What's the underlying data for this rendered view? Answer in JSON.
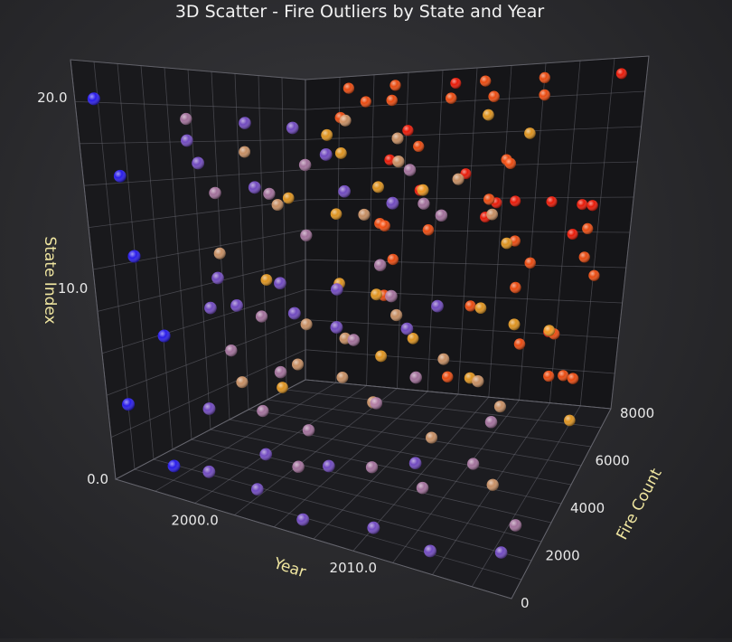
{
  "chart_data": {
    "type": "scatter",
    "title": "3D Scatter - Fire Outliers by State and Year",
    "xlabel": "Year",
    "ylabel": "State Index",
    "zlabel": "Fire Count",
    "xlim": [
      1995,
      2020
    ],
    "ylim": [
      0,
      22
    ],
    "zlim": [
      0,
      8000
    ],
    "x_ticks": [
      2000,
      2010
    ],
    "x_tick_labels": [
      "2000.0",
      "2010.0"
    ],
    "y_ticks": [
      0,
      10,
      20
    ],
    "y_tick_labels": [
      "0.0",
      "10.0",
      "20.0"
    ],
    "z_ticks": [
      0,
      2000,
      4000,
      6000,
      8000
    ],
    "z_tick_labels": [
      "0",
      "2000",
      "4000",
      "6000",
      "8000"
    ],
    "grid": true,
    "projection": "3d-perspective",
    "color_scale": [
      "#2a1cff",
      "#7a4fd0",
      "#b07aa8",
      "#d89a6a",
      "#f2a020",
      "#ff5010",
      "#ff1a05"
    ],
    "points": [
      [
        1996,
        20,
        300
      ],
      [
        1997,
        16,
        500
      ],
      [
        1998,
        12,
        200
      ],
      [
        1999,
        8,
        400
      ],
      [
        1996,
        4,
        250
      ],
      [
        1998,
        1,
        600
      ],
      [
        2000,
        21,
        7200
      ],
      [
        2001,
        19,
        6500
      ],
      [
        2002,
        20,
        6900
      ],
      [
        2003,
        18,
        5200
      ],
      [
        2004,
        21,
        7000
      ],
      [
        2005,
        17,
        4800
      ],
      [
        2006,
        20,
        6100
      ],
      [
        2007,
        21,
        7600
      ],
      [
        2008,
        19,
        3900
      ],
      [
        2009,
        20,
        6700
      ],
      [
        2010,
        21,
        7300
      ],
      [
        2011,
        18,
        4300
      ],
      [
        2012,
        20,
        6800
      ],
      [
        2013,
        17,
        3500
      ],
      [
        2014,
        19,
        5900
      ],
      [
        2015,
        21,
        7100
      ],
      [
        2016,
        16,
        4100
      ],
      [
        2017,
        20,
        6400
      ],
      [
        2018,
        18,
        5600
      ],
      [
        2019,
        21,
        7700
      ],
      [
        2000,
        15,
        2500
      ],
      [
        2001,
        14,
        4200
      ],
      [
        2002,
        13,
        5800
      ],
      [
        2003,
        15,
        3100
      ],
      [
        2004,
        12,
        6600
      ],
      [
        2005,
        14,
        7400
      ],
      [
        2006,
        13,
        2900
      ],
      [
        2007,
        15,
        5100
      ],
      [
        2008,
        12,
        6300
      ],
      [
        2009,
        14,
        3700
      ],
      [
        2010,
        13,
        7800
      ],
      [
        2011,
        15,
        4900
      ],
      [
        2012,
        12,
        2700
      ],
      [
        2013,
        14,
        6200
      ],
      [
        2014,
        13,
        7900
      ],
      [
        2015,
        15,
        3300
      ],
      [
        2016,
        12,
        5400
      ],
      [
        2017,
        14,
        4600
      ],
      [
        2018,
        13,
        7500
      ],
      [
        2019,
        15,
        2300
      ],
      [
        2011,
        13,
        8000
      ],
      [
        2009,
        12,
        7900
      ],
      [
        2016,
        11,
        7800
      ],
      [
        2017,
        13,
        7600
      ],
      [
        2003,
        12,
        6900
      ],
      [
        2005,
        10,
        6400
      ],
      [
        2013,
        11,
        7100
      ],
      [
        2015,
        10,
        6700
      ],
      [
        2000,
        9,
        1800
      ],
      [
        2001,
        8,
        3200
      ],
      [
        2002,
        7,
        4400
      ],
      [
        2003,
        9,
        5300
      ],
      [
        2004,
        6,
        2100
      ],
      [
        2005,
        8,
        6000
      ],
      [
        2006,
        7,
        3800
      ],
      [
        2007,
        9,
        4700
      ],
      [
        2008,
        6,
        5500
      ],
      [
        2009,
        8,
        2600
      ],
      [
        2010,
        7,
        6900
      ],
      [
        2011,
        9,
        3400
      ],
      [
        2012,
        6,
        4500
      ],
      [
        2013,
        8,
        5700
      ],
      [
        2014,
        7,
        2200
      ],
      [
        2015,
        9,
        6100
      ],
      [
        2016,
        6,
        3600
      ],
      [
        2017,
        8,
        4900
      ],
      [
        2018,
        7,
        5800
      ],
      [
        2019,
        9,
        7200
      ],
      [
        2000,
        4,
        1200
      ],
      [
        2001,
        3,
        2800
      ],
      [
        2002,
        5,
        3900
      ],
      [
        2003,
        2,
        1500
      ],
      [
        2004,
        4,
        4600
      ],
      [
        2005,
        3,
        2300
      ],
      [
        2006,
        5,
        5200
      ],
      [
        2007,
        2,
        1700
      ],
      [
        2008,
        4,
        3500
      ],
      [
        2009,
        3,
        6400
      ],
      [
        2010,
        5,
        2500
      ],
      [
        2011,
        2,
        4100
      ],
      [
        2012,
        4,
        5600
      ],
      [
        2013,
        3,
        1900
      ],
      [
        2014,
        5,
        6800
      ],
      [
        2015,
        2,
        3300
      ],
      [
        2016,
        4,
        4400
      ],
      [
        2017,
        3,
        7100
      ],
      [
        2018,
        5,
        2700
      ],
      [
        2019,
        2,
        5900
      ],
      [
        2000,
        1,
        800
      ],
      [
        2002,
        0,
        1500
      ],
      [
        2004,
        1,
        2200
      ],
      [
        2006,
        0,
        700
      ],
      [
        2008,
        1,
        3000
      ],
      [
        2010,
        0,
        1200
      ],
      [
        2012,
        1,
        2600
      ],
      [
        2014,
        0,
        900
      ],
      [
        2016,
        1,
        3400
      ],
      [
        2018,
        0,
        1600
      ],
      [
        2019,
        1,
        2000
      ],
      [
        2001,
        18,
        1400
      ],
      [
        2003,
        17,
        900
      ],
      [
        2005,
        19,
        1900
      ],
      [
        2007,
        16,
        1100
      ],
      [
        2009,
        17,
        2100
      ],
      [
        2011,
        19,
        1300
      ],
      [
        2013,
        16,
        1700
      ],
      [
        2015,
        18,
        800
      ],
      [
        2017,
        17,
        2400
      ],
      [
        2019,
        16,
        1000
      ],
      [
        2002,
        11,
        1300
      ],
      [
        2004,
        10,
        900
      ],
      [
        2006,
        11,
        1700
      ],
      [
        2008,
        10,
        1100
      ],
      [
        2010,
        11,
        1900
      ],
      [
        2012,
        10,
        700
      ],
      [
        2014,
        11,
        2000
      ],
      [
        2016,
        10,
        1400
      ],
      [
        2018,
        11,
        1800
      ],
      [
        1997,
        19,
        3000
      ],
      [
        1998,
        17,
        4500
      ],
      [
        1999,
        14,
        5500
      ],
      [
        1997,
        11,
        3800
      ],
      [
        1998,
        9,
        5000
      ],
      [
        1999,
        6,
        2900
      ],
      [
        1997,
        3,
        4300
      ],
      [
        1998,
        2,
        5400
      ],
      [
        2019,
        12,
        6900
      ],
      [
        2018,
        10,
        7300
      ],
      [
        2017,
        6,
        6600
      ],
      [
        2016,
        3,
        7000
      ],
      [
        2019,
        4,
        6200
      ],
      [
        2015,
        5,
        7600
      ],
      [
        2012,
        16,
        7200
      ],
      [
        2008,
        15,
        7600
      ],
      [
        2006,
        17,
        6900
      ],
      [
        2004,
        18,
        7400
      ],
      [
        2002,
        16,
        7700
      ],
      [
        2014,
        16,
        6500
      ]
    ]
  }
}
